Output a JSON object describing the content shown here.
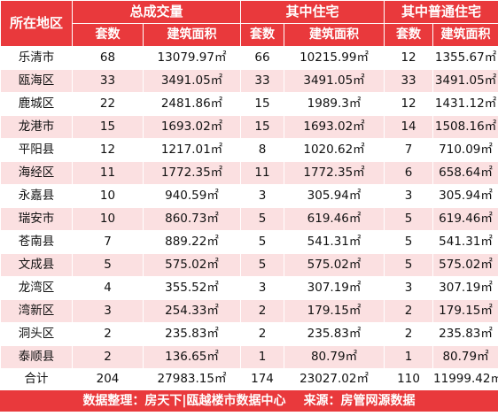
{
  "header": {
    "region": "所在地区",
    "group_total": "总成交量",
    "group_residential": "其中住宅",
    "group_ordinary": "其中普通住宅",
    "units": "套数",
    "area": "建筑面积"
  },
  "rows": [
    {
      "region": "乐清市",
      "total_units": "68",
      "total_area": "13079.97㎡",
      "res_units": "66",
      "res_area": "10215.99㎡",
      "ord_units": "12",
      "ord_area": "1355.67㎡"
    },
    {
      "region": "瓯海区",
      "total_units": "33",
      "total_area": "3491.05㎡",
      "res_units": "33",
      "res_area": "3491.05㎡",
      "ord_units": "33",
      "ord_area": "3491.05㎡"
    },
    {
      "region": "鹿城区",
      "total_units": "22",
      "total_area": "2481.86㎡",
      "res_units": "15",
      "res_area": "1989.3㎡",
      "ord_units": "12",
      "ord_area": "1431.12㎡"
    },
    {
      "region": "龙港市",
      "total_units": "15",
      "total_area": "1693.02㎡",
      "res_units": "15",
      "res_area": "1693.02㎡",
      "ord_units": "14",
      "ord_area": "1508.16㎡"
    },
    {
      "region": "平阳县",
      "total_units": "12",
      "total_area": "1217.01㎡",
      "res_units": "8",
      "res_area": "1020.62㎡",
      "ord_units": "7",
      "ord_area": "710.09㎡"
    },
    {
      "region": "海经区",
      "total_units": "11",
      "total_area": "1772.35㎡",
      "res_units": "11",
      "res_area": "1772.35㎡",
      "ord_units": "6",
      "ord_area": "658.64㎡"
    },
    {
      "region": "永嘉县",
      "total_units": "10",
      "total_area": "940.59㎡",
      "res_units": "3",
      "res_area": "305.94㎡",
      "ord_units": "3",
      "ord_area": "305.94㎡"
    },
    {
      "region": "瑞安市",
      "total_units": "10",
      "total_area": "860.73㎡",
      "res_units": "5",
      "res_area": "619.46㎡",
      "ord_units": "5",
      "ord_area": "619.46㎡"
    },
    {
      "region": "苍南县",
      "total_units": "7",
      "total_area": "889.22㎡",
      "res_units": "5",
      "res_area": "541.31㎡",
      "ord_units": "5",
      "ord_area": "541.31㎡"
    },
    {
      "region": "文成县",
      "total_units": "5",
      "total_area": "575.02㎡",
      "res_units": "5",
      "res_area": "575.02㎡",
      "ord_units": "5",
      "ord_area": "575.02㎡"
    },
    {
      "region": "龙湾区",
      "total_units": "4",
      "total_area": "355.52㎡",
      "res_units": "3",
      "res_area": "307.19㎡",
      "ord_units": "3",
      "ord_area": "307.19㎡"
    },
    {
      "region": "湾新区",
      "total_units": "3",
      "total_area": "254.33㎡",
      "res_units": "2",
      "res_area": "179.15㎡",
      "ord_units": "2",
      "ord_area": "179.15㎡"
    },
    {
      "region": "洞头区",
      "total_units": "2",
      "total_area": "235.83㎡",
      "res_units": "2",
      "res_area": "235.83㎡",
      "ord_units": "2",
      "ord_area": "235.83㎡"
    },
    {
      "region": "泰顺县",
      "total_units": "2",
      "total_area": "136.65㎡",
      "res_units": "1",
      "res_area": "80.79㎡",
      "ord_units": "1",
      "ord_area": "80.79㎡"
    }
  ],
  "total": {
    "region": "合计",
    "total_units": "204",
    "total_area": "27983.15㎡",
    "res_units": "174",
    "res_area": "23027.02㎡",
    "ord_units": "110",
    "ord_area": "11999.42㎡"
  },
  "footer": {
    "data_credit": "数据整理：房天下|瓯越楼市数据中心",
    "source": "来源：房管网源数据"
  },
  "colors": {
    "header_bg": "#e9393c",
    "stripe_bg": "#fbe0e1"
  }
}
